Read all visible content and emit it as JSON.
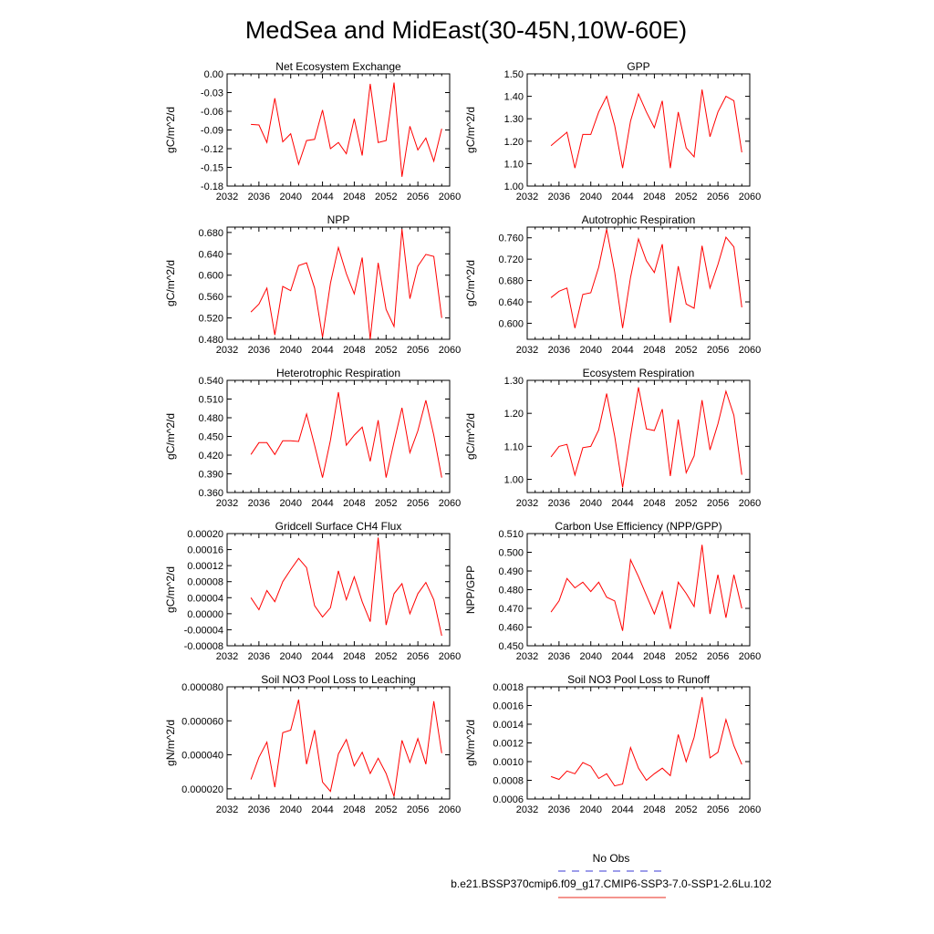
{
  "page": {
    "title": "MedSea and MidEast(30-45N,10W-60E)"
  },
  "legend": {
    "items": [
      {
        "label": "No Obs",
        "color": "#3b3bd6",
        "style": "dashed"
      },
      {
        "label": "b.e21.BSSP370cmip6.f09_g17.CMIP6-SSP3-7.0-SSP1-2.6Lu.102",
        "color": "#e8291c",
        "style": "solid"
      }
    ]
  },
  "chart_data": [
    {
      "type": "line",
      "title": "Net Ecosystem Exchange",
      "ylabel": "gC/m^2/d",
      "xlim": [
        2032,
        2060
      ],
      "ylim": [
        -0.18,
        0.0
      ],
      "xticks": [
        "2032",
        "2036",
        "2040",
        "2044",
        "2048",
        "2052",
        "2056",
        "2060"
      ],
      "yticks": [
        "0.00",
        "-0.03",
        "-0.06",
        "-0.09",
        "-0.12",
        "-0.15",
        "-0.18"
      ],
      "series": [
        {
          "color": "#ff0000",
          "x": [
            2035,
            2036,
            2037,
            2038,
            2039,
            2040,
            2041,
            2042,
            2043,
            2044,
            2045,
            2046,
            2047,
            2048,
            2049,
            2050,
            2051,
            2052,
            2053,
            2054,
            2055,
            2056,
            2057,
            2058,
            2059
          ],
          "values": [
            -0.081,
            -0.082,
            -0.11,
            -0.039,
            -0.109,
            -0.096,
            -0.145,
            -0.107,
            -0.105,
            -0.058,
            -0.12,
            -0.11,
            -0.128,
            -0.072,
            -0.131,
            -0.016,
            -0.11,
            -0.107,
            -0.014,
            -0.165,
            -0.084,
            -0.122,
            -0.103,
            -0.14,
            -0.088
          ]
        }
      ]
    },
    {
      "type": "line",
      "title": "GPP",
      "ylabel": "gC/m^2/d",
      "xlim": [
        2032,
        2060
      ],
      "ylim": [
        1.0,
        1.5
      ],
      "xticks": [
        "2032",
        "2036",
        "2040",
        "2044",
        "2048",
        "2052",
        "2056",
        "2060"
      ],
      "yticks": [
        "1.50",
        "1.40",
        "1.30",
        "1.20",
        "1.10",
        "1.00"
      ],
      "series": [
        {
          "color": "#ff0000",
          "x": [
            2035,
            2036,
            2037,
            2038,
            2039,
            2040,
            2041,
            2042,
            2043,
            2044,
            2045,
            2046,
            2047,
            2048,
            2049,
            2050,
            2051,
            2052,
            2053,
            2054,
            2055,
            2056,
            2057,
            2058,
            2059
          ],
          "values": [
            1.18,
            1.21,
            1.24,
            1.08,
            1.23,
            1.23,
            1.33,
            1.4,
            1.27,
            1.08,
            1.29,
            1.41,
            1.33,
            1.26,
            1.38,
            1.08,
            1.33,
            1.17,
            1.13,
            1.43,
            1.22,
            1.33,
            1.4,
            1.38,
            1.15
          ]
        }
      ]
    },
    {
      "type": "line",
      "title": "NPP",
      "ylabel": "gC/m^2/d",
      "xlim": [
        2032,
        2060
      ],
      "ylim": [
        0.48,
        0.69
      ],
      "xticks": [
        "2032",
        "2036",
        "2040",
        "2044",
        "2048",
        "2052",
        "2056",
        "2060"
      ],
      "yticks": [
        "0.680",
        "0.640",
        "0.600",
        "0.560",
        "0.520",
        "0.480"
      ],
      "series": [
        {
          "color": "#ff0000",
          "x": [
            2035,
            2036,
            2037,
            2038,
            2039,
            2040,
            2041,
            2042,
            2043,
            2044,
            2045,
            2046,
            2047,
            2048,
            2049,
            2050,
            2051,
            2052,
            2053,
            2054,
            2055,
            2056,
            2057,
            2058,
            2059
          ],
          "values": [
            0.531,
            0.546,
            0.576,
            0.488,
            0.579,
            0.571,
            0.618,
            0.623,
            0.576,
            0.484,
            0.585,
            0.652,
            0.603,
            0.565,
            0.633,
            0.48,
            0.623,
            0.536,
            0.504,
            0.686,
            0.556,
            0.617,
            0.639,
            0.635,
            0.52
          ]
        }
      ]
    },
    {
      "type": "line",
      "title": "Autotrophic Respiration",
      "ylabel": "gC/m^2/d",
      "xlim": [
        2032,
        2060
      ],
      "ylim": [
        0.57,
        0.78
      ],
      "xticks": [
        "2032",
        "2036",
        "2040",
        "2044",
        "2048",
        "2052",
        "2056",
        "2060"
      ],
      "yticks": [
        "0.760",
        "0.720",
        "0.680",
        "0.640",
        "0.600"
      ],
      "series": [
        {
          "color": "#ff0000",
          "x": [
            2035,
            2036,
            2037,
            2038,
            2039,
            2040,
            2041,
            2042,
            2043,
            2044,
            2045,
            2046,
            2047,
            2048,
            2049,
            2050,
            2051,
            2052,
            2053,
            2054,
            2055,
            2056,
            2057,
            2058,
            2059
          ],
          "values": [
            0.648,
            0.66,
            0.666,
            0.591,
            0.654,
            0.657,
            0.705,
            0.776,
            0.696,
            0.591,
            0.686,
            0.758,
            0.717,
            0.695,
            0.748,
            0.601,
            0.707,
            0.636,
            0.628,
            0.745,
            0.666,
            0.71,
            0.761,
            0.743,
            0.63
          ]
        }
      ]
    },
    {
      "type": "line",
      "title": "Heterotrophic Respiration",
      "ylabel": "gC/m^2/d",
      "xlim": [
        2032,
        2060
      ],
      "ylim": [
        0.36,
        0.54
      ],
      "xticks": [
        "2032",
        "2036",
        "2040",
        "2044",
        "2048",
        "2052",
        "2056",
        "2060"
      ],
      "yticks": [
        "0.540",
        "0.510",
        "0.480",
        "0.450",
        "0.420",
        "0.390",
        "0.360"
      ],
      "series": [
        {
          "color": "#ff0000",
          "x": [
            2035,
            2036,
            2037,
            2038,
            2039,
            2040,
            2041,
            2042,
            2043,
            2044,
            2045,
            2046,
            2047,
            2048,
            2049,
            2050,
            2051,
            2052,
            2053,
            2054,
            2055,
            2056,
            2057,
            2058,
            2059
          ],
          "values": [
            0.421,
            0.44,
            0.44,
            0.421,
            0.443,
            0.443,
            0.442,
            0.486,
            0.436,
            0.384,
            0.444,
            0.521,
            0.436,
            0.452,
            0.465,
            0.41,
            0.476,
            0.384,
            0.441,
            0.496,
            0.424,
            0.459,
            0.508,
            0.452,
            0.384
          ]
        }
      ]
    },
    {
      "type": "line",
      "title": "Ecosystem Respiration",
      "ylabel": "gC/m^2/d",
      "xlim": [
        2032,
        2060
      ],
      "ylim": [
        0.96,
        1.3
      ],
      "xticks": [
        "2032",
        "2036",
        "2040",
        "2044",
        "2048",
        "2052",
        "2056",
        "2060"
      ],
      "yticks": [
        "1.30",
        "1.20",
        "1.10",
        "1.00"
      ],
      "series": [
        {
          "color": "#ff0000",
          "x": [
            2035,
            2036,
            2037,
            2038,
            2039,
            2040,
            2041,
            2042,
            2043,
            2044,
            2045,
            2046,
            2047,
            2048,
            2049,
            2050,
            2051,
            2052,
            2053,
            2054,
            2055,
            2056,
            2057,
            2058,
            2059
          ],
          "values": [
            1.068,
            1.1,
            1.106,
            1.013,
            1.096,
            1.1,
            1.15,
            1.26,
            1.131,
            0.975,
            1.13,
            1.279,
            1.153,
            1.148,
            1.213,
            1.01,
            1.181,
            1.02,
            1.071,
            1.24,
            1.089,
            1.168,
            1.267,
            1.194,
            1.014
          ]
        }
      ]
    },
    {
      "type": "line",
      "title": "Gridcell Surface CH4 Flux",
      "ylabel": "gC/m^2/d",
      "xlim": [
        2032,
        2060
      ],
      "ylim": [
        -8e-05,
        0.0002
      ],
      "xticks": [
        "2032",
        "2036",
        "2040",
        "2044",
        "2048",
        "2052",
        "2056",
        "2060"
      ],
      "yticks": [
        "0.00020",
        "0.00016",
        "0.00012",
        "0.00008",
        "0.00004",
        "0.00000",
        "-0.00004",
        "-0.00008"
      ],
      "series": [
        {
          "color": "#ff0000",
          "x": [
            2035,
            2036,
            2037,
            2038,
            2039,
            2040,
            2041,
            2042,
            2043,
            2044,
            2045,
            2046,
            2047,
            2048,
            2049,
            2050,
            2051,
            2052,
            2053,
            2054,
            2055,
            2056,
            2057,
            2058,
            2059
          ],
          "values": [
            4e-05,
            1e-05,
            5.8e-05,
            3e-05,
            8e-05,
            0.00011,
            0.000138,
            0.000115,
            2e-05,
            -8e-06,
            1.5e-05,
            0.000107,
            3.5e-05,
            9.2e-05,
            3e-05,
            -2e-05,
            0.00019,
            -2.8e-05,
            5e-05,
            7.5e-05,
            0.0,
            5e-05,
            7.8e-05,
            3.5e-05,
            -5.5e-05
          ]
        }
      ]
    },
    {
      "type": "line",
      "title": "Carbon Use Efficiency (NPP/GPP)",
      "ylabel": "NPP/GPP",
      "xlim": [
        2032,
        2060
      ],
      "ylim": [
        0.45,
        0.51
      ],
      "xticks": [
        "2032",
        "2036",
        "2040",
        "2044",
        "2048",
        "2052",
        "2056",
        "2060"
      ],
      "yticks": [
        "0.510",
        "0.500",
        "0.490",
        "0.480",
        "0.470",
        "0.460",
        "0.450"
      ],
      "series": [
        {
          "color": "#ff0000",
          "x": [
            2035,
            2036,
            2037,
            2038,
            2039,
            2040,
            2041,
            2042,
            2043,
            2044,
            2045,
            2046,
            2047,
            2048,
            2049,
            2050,
            2051,
            2052,
            2053,
            2054,
            2055,
            2056,
            2057,
            2058,
            2059
          ],
          "values": [
            0.468,
            0.474,
            0.486,
            0.481,
            0.484,
            0.479,
            0.484,
            0.476,
            0.474,
            0.458,
            0.496,
            0.487,
            0.477,
            0.467,
            0.479,
            0.459,
            0.484,
            0.478,
            0.471,
            0.504,
            0.467,
            0.488,
            0.465,
            0.488,
            0.47
          ]
        }
      ]
    },
    {
      "type": "line",
      "title": "Soil NO3 Pool Loss to Leaching",
      "ylabel": "gN/m^2/d",
      "xlim": [
        2032,
        2060
      ],
      "ylim": [
        1.4e-05,
        8e-05
      ],
      "xticks": [
        "2032",
        "2036",
        "2040",
        "2044",
        "2048",
        "2052",
        "2056",
        "2060"
      ],
      "yticks": [
        "0.000080",
        "0.000060",
        "0.000040",
        "0.000020"
      ],
      "series": [
        {
          "color": "#ff0000",
          "x": [
            2035,
            2036,
            2037,
            2038,
            2039,
            2040,
            2041,
            2042,
            2043,
            2044,
            2045,
            2046,
            2047,
            2048,
            2049,
            2050,
            2051,
            2052,
            2053,
            2054,
            2055,
            2056,
            2057,
            2058,
            2059
          ],
          "values": [
            2.55e-05,
            3.85e-05,
            4.75e-05,
            2.1e-05,
            5.3e-05,
            5.45e-05,
            7.25e-05,
            3.45e-05,
            5.45e-05,
            2.4e-05,
            1.85e-05,
            4.05e-05,
            4.9e-05,
            3.35e-05,
            4.15e-05,
            2.9e-05,
            3.8e-05,
            2.9e-05,
            1.55e-05,
            4.85e-05,
            3.55e-05,
            4.95e-05,
            3.45e-05,
            7.15e-05,
            4.1e-05
          ]
        }
      ]
    },
    {
      "type": "line",
      "title": "Soil NO3 Pool Loss to Runoff",
      "ylabel": "gN/m^2/d",
      "xlim": [
        2032,
        2060
      ],
      "ylim": [
        0.0006,
        0.0018
      ],
      "xticks": [
        "2032",
        "2036",
        "2040",
        "2044",
        "2048",
        "2052",
        "2056",
        "2060"
      ],
      "yticks": [
        "0.0018",
        "0.0016",
        "0.0014",
        "0.0012",
        "0.0010",
        "0.0008",
        "0.0006"
      ],
      "series": [
        {
          "color": "#ff0000",
          "x": [
            2035,
            2036,
            2037,
            2038,
            2039,
            2040,
            2041,
            2042,
            2043,
            2044,
            2045,
            2046,
            2047,
            2048,
            2049,
            2050,
            2051,
            2052,
            2053,
            2054,
            2055,
            2056,
            2057,
            2058,
            2059
          ],
          "values": [
            0.00084,
            0.00081,
            0.0009,
            0.00087,
            0.00099,
            0.00095,
            0.00082,
            0.00087,
            0.00074,
            0.00076,
            0.00115,
            0.00093,
            0.0008,
            0.00087,
            0.00093,
            0.00085,
            0.00129,
            0.001,
            0.00126,
            0.00169,
            0.00104,
            0.0011,
            0.00145,
            0.00117,
            0.00097
          ]
        }
      ]
    }
  ]
}
